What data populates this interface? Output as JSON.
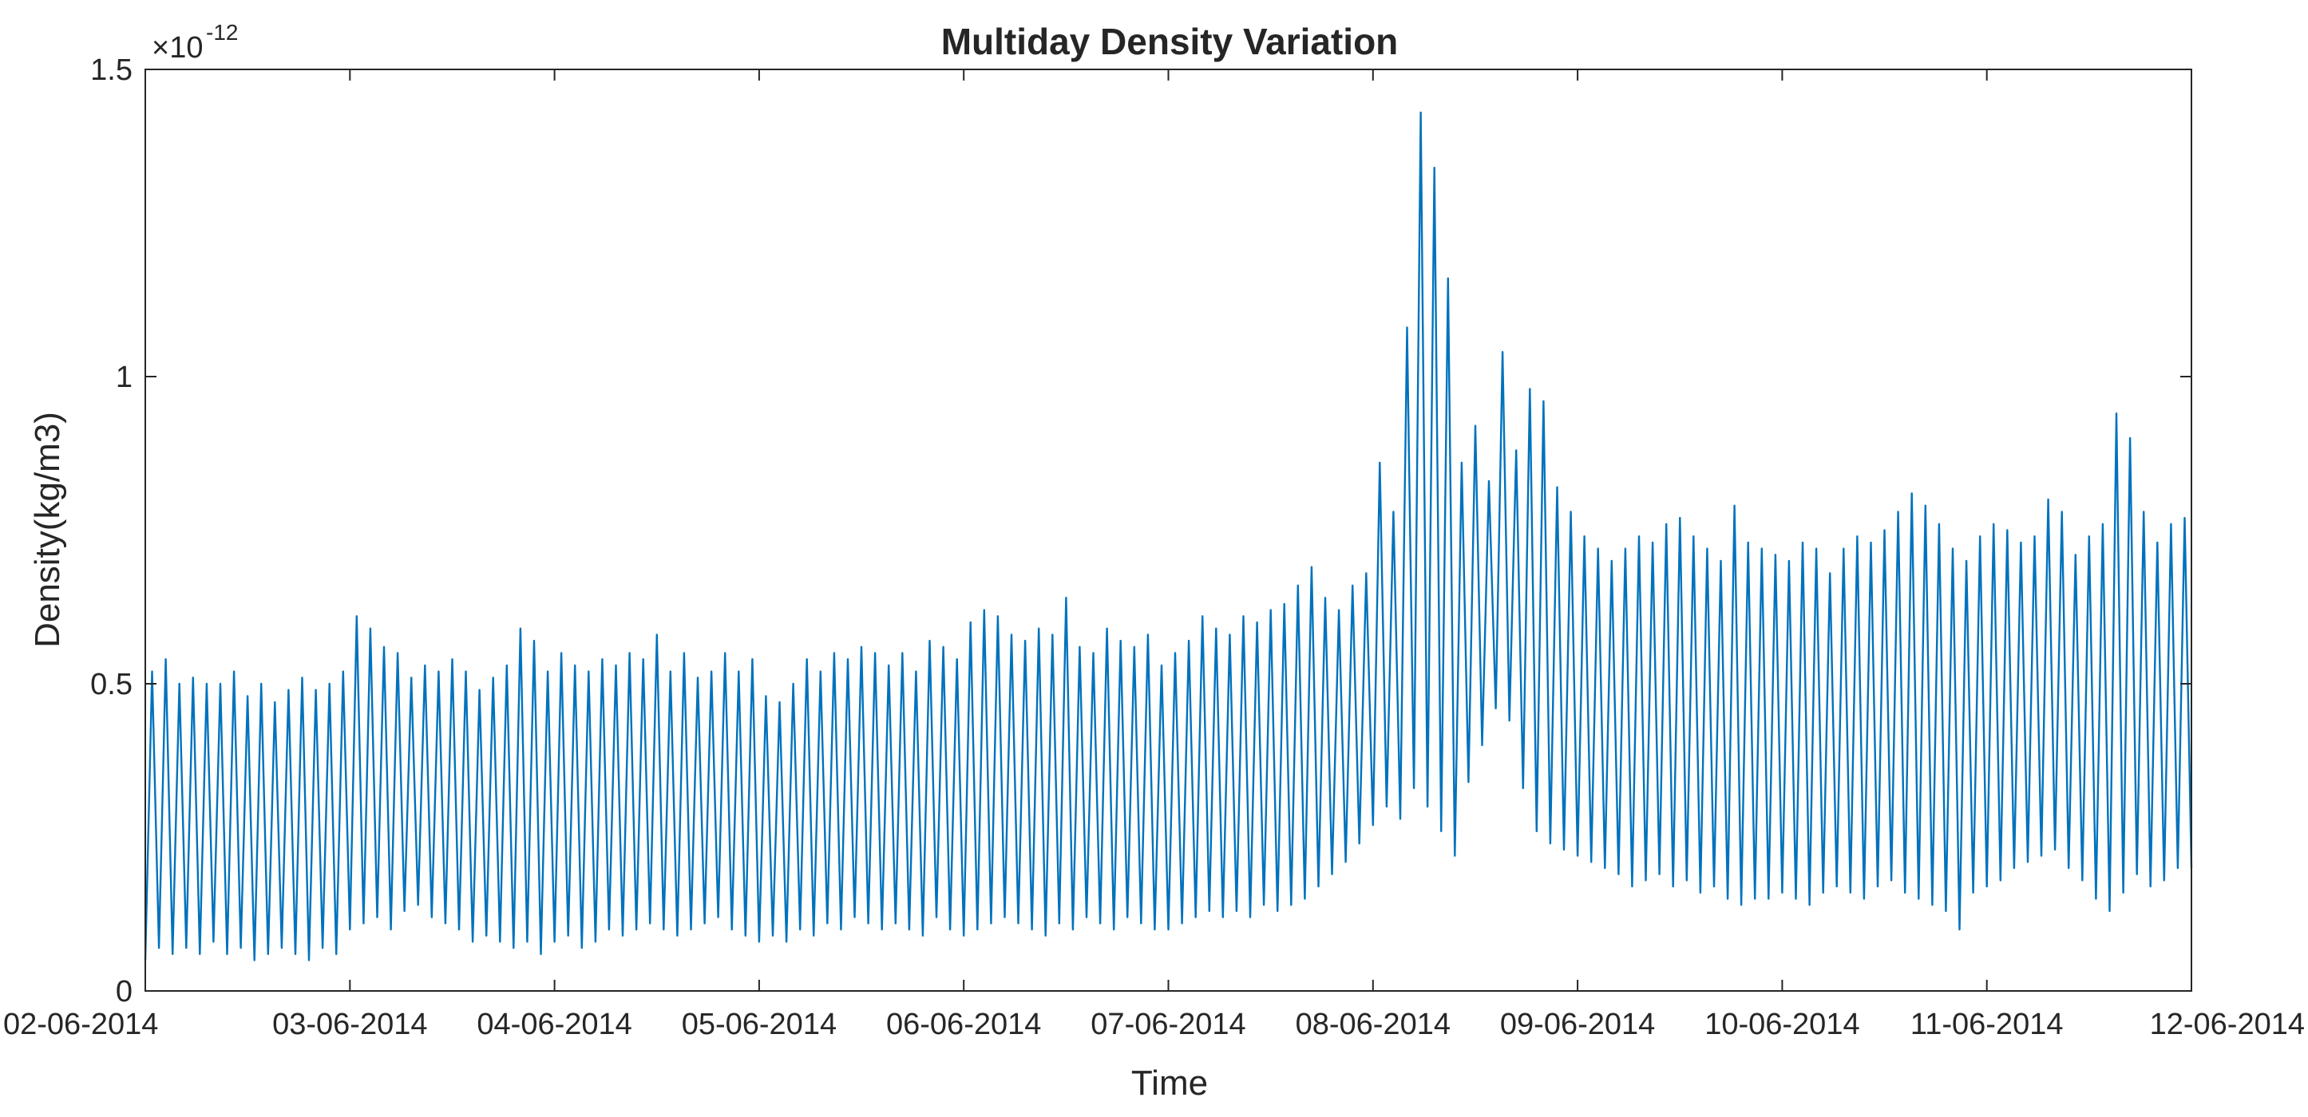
{
  "chart_data": {
    "type": "line",
    "title": "Multiday Density Variation",
    "xlabel": "Time",
    "ylabel": "Density(kg/m3)",
    "y_exponent_base": "×10",
    "y_exponent_power": "-12",
    "ylim": [
      0,
      1.5
    ],
    "yticks": [
      {
        "value": 0,
        "label": "0"
      },
      {
        "value": 0.5,
        "label": "0.5"
      },
      {
        "value": 1,
        "label": "1"
      },
      {
        "value": 1.5,
        "label": "1.5"
      }
    ],
    "xlim": [
      "02-06-2014",
      "12-06-2014"
    ],
    "xticks": [
      "02-06-2014",
      "03-06-2014",
      "04-06-2014",
      "05-06-2014",
      "06-06-2014",
      "07-06-2014",
      "08-06-2014",
      "09-06-2014",
      "10-06-2014",
      "11-06-2014",
      "12-06-2014"
    ],
    "grid": false,
    "line_color": "#0072BD",
    "series": [
      {
        "samples_per_day": 15,
        "peaks": [
          0.52,
          0.54,
          0.5,
          0.51,
          0.5,
          0.5,
          0.52,
          0.48,
          0.5,
          0.47,
          0.49,
          0.51,
          0.49,
          0.5,
          0.52,
          0.61,
          0.59,
          0.56,
          0.55,
          0.51,
          0.53,
          0.52,
          0.54,
          0.52,
          0.49,
          0.51,
          0.53,
          0.59,
          0.57,
          0.52,
          0.55,
          0.53,
          0.52,
          0.54,
          0.53,
          0.55,
          0.54,
          0.58,
          0.52,
          0.55,
          0.51,
          0.52,
          0.55,
          0.52,
          0.54,
          0.48,
          0.47,
          0.5,
          0.54,
          0.52,
          0.55,
          0.54,
          0.56,
          0.55,
          0.53,
          0.55,
          0.52,
          0.57,
          0.56,
          0.54,
          0.6,
          0.62,
          0.61,
          0.58,
          0.57,
          0.59,
          0.58,
          0.64,
          0.56,
          0.55,
          0.59,
          0.57,
          0.56,
          0.58,
          0.53,
          0.55,
          0.57,
          0.61,
          0.59,
          0.58,
          0.61,
          0.6,
          0.62,
          0.63,
          0.66,
          0.69,
          0.64,
          0.62,
          0.66,
          0.68,
          0.86,
          0.78,
          1.08,
          1.43,
          1.34,
          1.16,
          0.86,
          0.92,
          0.83,
          1.04,
          0.88,
          0.98,
          0.96,
          0.82,
          0.78,
          0.74,
          0.72,
          0.7,
          0.72,
          0.74,
          0.73,
          0.76,
          0.77,
          0.74,
          0.72,
          0.7,
          0.79,
          0.73,
          0.72,
          0.71,
          0.7,
          0.73,
          0.72,
          0.68,
          0.72,
          0.74,
          0.73,
          0.75,
          0.78,
          0.81,
          0.79,
          0.76,
          0.72,
          0.7,
          0.74,
          0.76,
          0.75,
          0.73,
          0.74,
          0.8,
          0.78,
          0.71,
          0.74,
          0.76,
          0.94,
          0.9,
          0.78,
          0.73,
          0.76,
          0.77
        ],
        "troughs": [
          0.05,
          0.07,
          0.06,
          0.07,
          0.06,
          0.08,
          0.06,
          0.07,
          0.05,
          0.06,
          0.07,
          0.06,
          0.05,
          0.07,
          0.06,
          0.1,
          0.11,
          0.12,
          0.1,
          0.13,
          0.14,
          0.12,
          0.11,
          0.1,
          0.08,
          0.09,
          0.08,
          0.07,
          0.08,
          0.06,
          0.08,
          0.09,
          0.07,
          0.08,
          0.1,
          0.09,
          0.1,
          0.11,
          0.1,
          0.09,
          0.1,
          0.11,
          0.12,
          0.1,
          0.09,
          0.08,
          0.09,
          0.08,
          0.1,
          0.09,
          0.11,
          0.1,
          0.12,
          0.11,
          0.1,
          0.11,
          0.1,
          0.09,
          0.12,
          0.1,
          0.09,
          0.1,
          0.11,
          0.12,
          0.11,
          0.1,
          0.09,
          0.11,
          0.1,
          0.12,
          0.11,
          0.1,
          0.12,
          0.11,
          0.1,
          0.1,
          0.11,
          0.12,
          0.13,
          0.12,
          0.13,
          0.12,
          0.14,
          0.13,
          0.14,
          0.15,
          0.17,
          0.19,
          0.21,
          0.24,
          0.27,
          0.3,
          0.28,
          0.33,
          0.3,
          0.26,
          0.22,
          0.34,
          0.4,
          0.46,
          0.44,
          0.33,
          0.26,
          0.24,
          0.23,
          0.22,
          0.21,
          0.2,
          0.19,
          0.17,
          0.18,
          0.19,
          0.17,
          0.18,
          0.16,
          0.17,
          0.15,
          0.14,
          0.15,
          0.15,
          0.16,
          0.15,
          0.14,
          0.16,
          0.17,
          0.16,
          0.15,
          0.17,
          0.18,
          0.16,
          0.15,
          0.14,
          0.13,
          0.1,
          0.16,
          0.17,
          0.18,
          0.2,
          0.21,
          0.22,
          0.23,
          0.2,
          0.18,
          0.15,
          0.13,
          0.16,
          0.19,
          0.17,
          0.18,
          0.2
        ]
      }
    ]
  }
}
